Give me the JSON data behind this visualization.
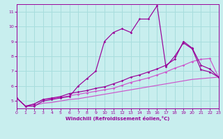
{
  "xlabel": "Windchill (Refroidissement éolien,°C)",
  "bg_color": "#c8eeee",
  "grid_color": "#a8dddd",
  "line_color": "#990099",
  "line_color_light": "#cc55cc",
  "xlim": [
    0,
    23
  ],
  "ylim": [
    4.5,
    11.5
  ],
  "xticks": [
    0,
    1,
    2,
    3,
    4,
    5,
    6,
    7,
    8,
    9,
    10,
    11,
    12,
    13,
    14,
    15,
    16,
    17,
    18,
    19,
    20,
    21,
    22,
    23
  ],
  "yticks": [
    5,
    6,
    7,
    8,
    9,
    10,
    11
  ],
  "curve1_x": [
    0,
    1,
    2,
    3,
    4,
    5,
    6,
    7,
    8,
    9,
    10,
    11,
    12,
    13,
    14,
    15,
    16,
    17,
    18,
    19,
    20,
    21,
    22,
    23
  ],
  "curve1_y": [
    5.2,
    4.65,
    4.65,
    5.0,
    5.1,
    5.2,
    5.3,
    6.0,
    6.5,
    7.0,
    9.0,
    9.6,
    9.85,
    9.6,
    10.5,
    10.5,
    11.4,
    7.3,
    8.0,
    8.9,
    8.5,
    7.1,
    6.95,
    6.6
  ],
  "curve2_x": [
    0,
    1,
    2,
    3,
    4,
    5,
    6,
    7,
    8,
    9,
    10,
    11,
    12,
    13,
    14,
    15,
    16,
    17,
    18,
    19,
    20,
    21,
    22,
    23
  ],
  "curve2_y": [
    5.2,
    4.65,
    4.8,
    5.1,
    5.15,
    5.25,
    5.35,
    5.45,
    5.55,
    5.65,
    5.75,
    5.85,
    6.05,
    6.25,
    6.4,
    6.55,
    6.75,
    6.95,
    7.2,
    7.4,
    7.65,
    7.8,
    7.85,
    6.6
  ],
  "curve3_x": [
    0,
    1,
    2,
    3,
    4,
    5,
    6,
    7,
    8,
    9,
    10,
    11,
    12,
    13,
    14,
    15,
    16,
    17,
    18,
    19,
    20,
    21,
    22,
    23
  ],
  "curve3_y": [
    5.2,
    4.65,
    4.8,
    5.1,
    5.2,
    5.3,
    5.5,
    5.6,
    5.7,
    5.85,
    5.95,
    6.15,
    6.35,
    6.6,
    6.75,
    6.95,
    7.15,
    7.4,
    7.8,
    9.0,
    8.55,
    7.4,
    7.15,
    6.6
  ],
  "curve4_x": [
    0,
    1,
    2,
    3,
    4,
    5,
    6,
    7,
    8,
    9,
    10,
    11,
    12,
    13,
    14,
    15,
    16,
    17,
    18,
    19,
    20,
    21,
    22,
    23
  ],
  "curve4_y": [
    5.2,
    4.65,
    4.7,
    4.85,
    4.9,
    5.0,
    5.1,
    5.15,
    5.25,
    5.35,
    5.45,
    5.55,
    5.65,
    5.75,
    5.85,
    5.95,
    6.05,
    6.15,
    6.25,
    6.35,
    6.45,
    6.5,
    6.55,
    6.6
  ]
}
